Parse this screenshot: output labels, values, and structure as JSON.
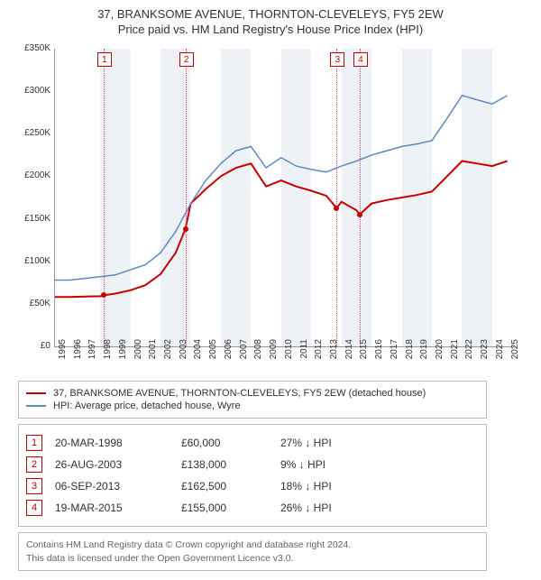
{
  "title": "37, BRANKSOME AVENUE, THORNTON-CLEVELEYS, FY5 2EW",
  "subtitle": "Price paid vs. HM Land Registry's House Price Index (HPI)",
  "chart": {
    "type": "line",
    "xlim": [
      1995,
      2025.5
    ],
    "ylim": [
      0,
      350000
    ],
    "xtick_step": 1,
    "ytick_step": 50000,
    "yticks": [
      "£0",
      "£50K",
      "£100K",
      "£150K",
      "£200K",
      "£250K",
      "£300K",
      "£350K"
    ],
    "xticks": [
      "1995",
      "1996",
      "1997",
      "1998",
      "1999",
      "2000",
      "2001",
      "2002",
      "2003",
      "2004",
      "2005",
      "2006",
      "2007",
      "2008",
      "2009",
      "2010",
      "2011",
      "2012",
      "2013",
      "2014",
      "2015",
      "2016",
      "2017",
      "2018",
      "2019",
      "2020",
      "2021",
      "2022",
      "2023",
      "2024",
      "2025"
    ],
    "band_color": "#eef2f6",
    "background": "#ffffff",
    "series": [
      {
        "name": "price_paid",
        "color": "#cc0000",
        "width": 2,
        "label": "37, BRANKSOME AVENUE, THORNTON-CLEVELEYS, FY5 2EW (detached house)",
        "points": [
          [
            1995,
            58000
          ],
          [
            1996,
            58000
          ],
          [
            1997,
            58500
          ],
          [
            1998,
            59000
          ],
          [
            1998.22,
            60000
          ],
          [
            1999,
            62000
          ],
          [
            2000,
            66000
          ],
          [
            2001,
            72000
          ],
          [
            2002,
            85000
          ],
          [
            2003,
            110000
          ],
          [
            2003.65,
            138000
          ],
          [
            2004,
            168000
          ],
          [
            2005,
            185000
          ],
          [
            2006,
            200000
          ],
          [
            2007,
            210000
          ],
          [
            2008,
            215000
          ],
          [
            2009,
            188000
          ],
          [
            2010,
            195000
          ],
          [
            2011,
            188000
          ],
          [
            2012,
            183000
          ],
          [
            2013,
            177000
          ],
          [
            2013.68,
            162500
          ],
          [
            2014,
            170000
          ],
          [
            2015,
            160000
          ],
          [
            2015.21,
            155000
          ],
          [
            2016,
            168000
          ],
          [
            2017,
            172000
          ],
          [
            2018,
            175000
          ],
          [
            2019,
            178000
          ],
          [
            2020,
            182000
          ],
          [
            2021,
            200000
          ],
          [
            2022,
            218000
          ],
          [
            2023,
            215000
          ],
          [
            2024,
            212000
          ],
          [
            2025,
            218000
          ]
        ]
      },
      {
        "name": "hpi",
        "color": "#5b8bc9",
        "width": 1.5,
        "label": "HPI: Average price, detached house, Wyre",
        "points": [
          [
            1995,
            78000
          ],
          [
            1996,
            78000
          ],
          [
            1997,
            80000
          ],
          [
            1998,
            82000
          ],
          [
            1999,
            84000
          ],
          [
            2000,
            90000
          ],
          [
            2001,
            96000
          ],
          [
            2002,
            110000
          ],
          [
            2003,
            135000
          ],
          [
            2004,
            168000
          ],
          [
            2005,
            195000
          ],
          [
            2006,
            215000
          ],
          [
            2007,
            230000
          ],
          [
            2008,
            235000
          ],
          [
            2009,
            210000
          ],
          [
            2010,
            222000
          ],
          [
            2011,
            212000
          ],
          [
            2012,
            208000
          ],
          [
            2013,
            205000
          ],
          [
            2014,
            212000
          ],
          [
            2015,
            218000
          ],
          [
            2016,
            225000
          ],
          [
            2017,
            230000
          ],
          [
            2018,
            235000
          ],
          [
            2019,
            238000
          ],
          [
            2020,
            242000
          ],
          [
            2021,
            268000
          ],
          [
            2022,
            295000
          ],
          [
            2023,
            290000
          ],
          [
            2024,
            285000
          ],
          [
            2025,
            295000
          ]
        ]
      }
    ],
    "sale_markers": [
      {
        "n": "1",
        "x": 1998.22,
        "y": 60000
      },
      {
        "n": "2",
        "x": 2003.65,
        "y": 138000
      },
      {
        "n": "3",
        "x": 2013.68,
        "y": 162500
      },
      {
        "n": "4",
        "x": 2015.21,
        "y": 155000
      }
    ],
    "bands_alt_start": 1998
  },
  "legend": {
    "items": [
      {
        "color": "#cc0000",
        "label": "37, BRANKSOME AVENUE, THORNTON-CLEVELEYS, FY5 2EW (detached house)"
      },
      {
        "color": "#5b8bc9",
        "label": "HPI: Average price, detached house, Wyre"
      }
    ]
  },
  "events": [
    {
      "n": "1",
      "date": "20-MAR-1998",
      "price": "£60,000",
      "diff": "27% ↓ HPI"
    },
    {
      "n": "2",
      "date": "26-AUG-2003",
      "price": "£138,000",
      "diff": "9% ↓ HPI"
    },
    {
      "n": "3",
      "date": "06-SEP-2013",
      "price": "£162,500",
      "diff": "18% ↓ HPI"
    },
    {
      "n": "4",
      "date": "19-MAR-2015",
      "price": "£155,000",
      "diff": "26% ↓ HPI"
    }
  ],
  "footer": {
    "line1": "Contains HM Land Registry data © Crown copyright and database right 2024.",
    "line2": "This data is licensed under the Open Government Licence v3.0."
  }
}
